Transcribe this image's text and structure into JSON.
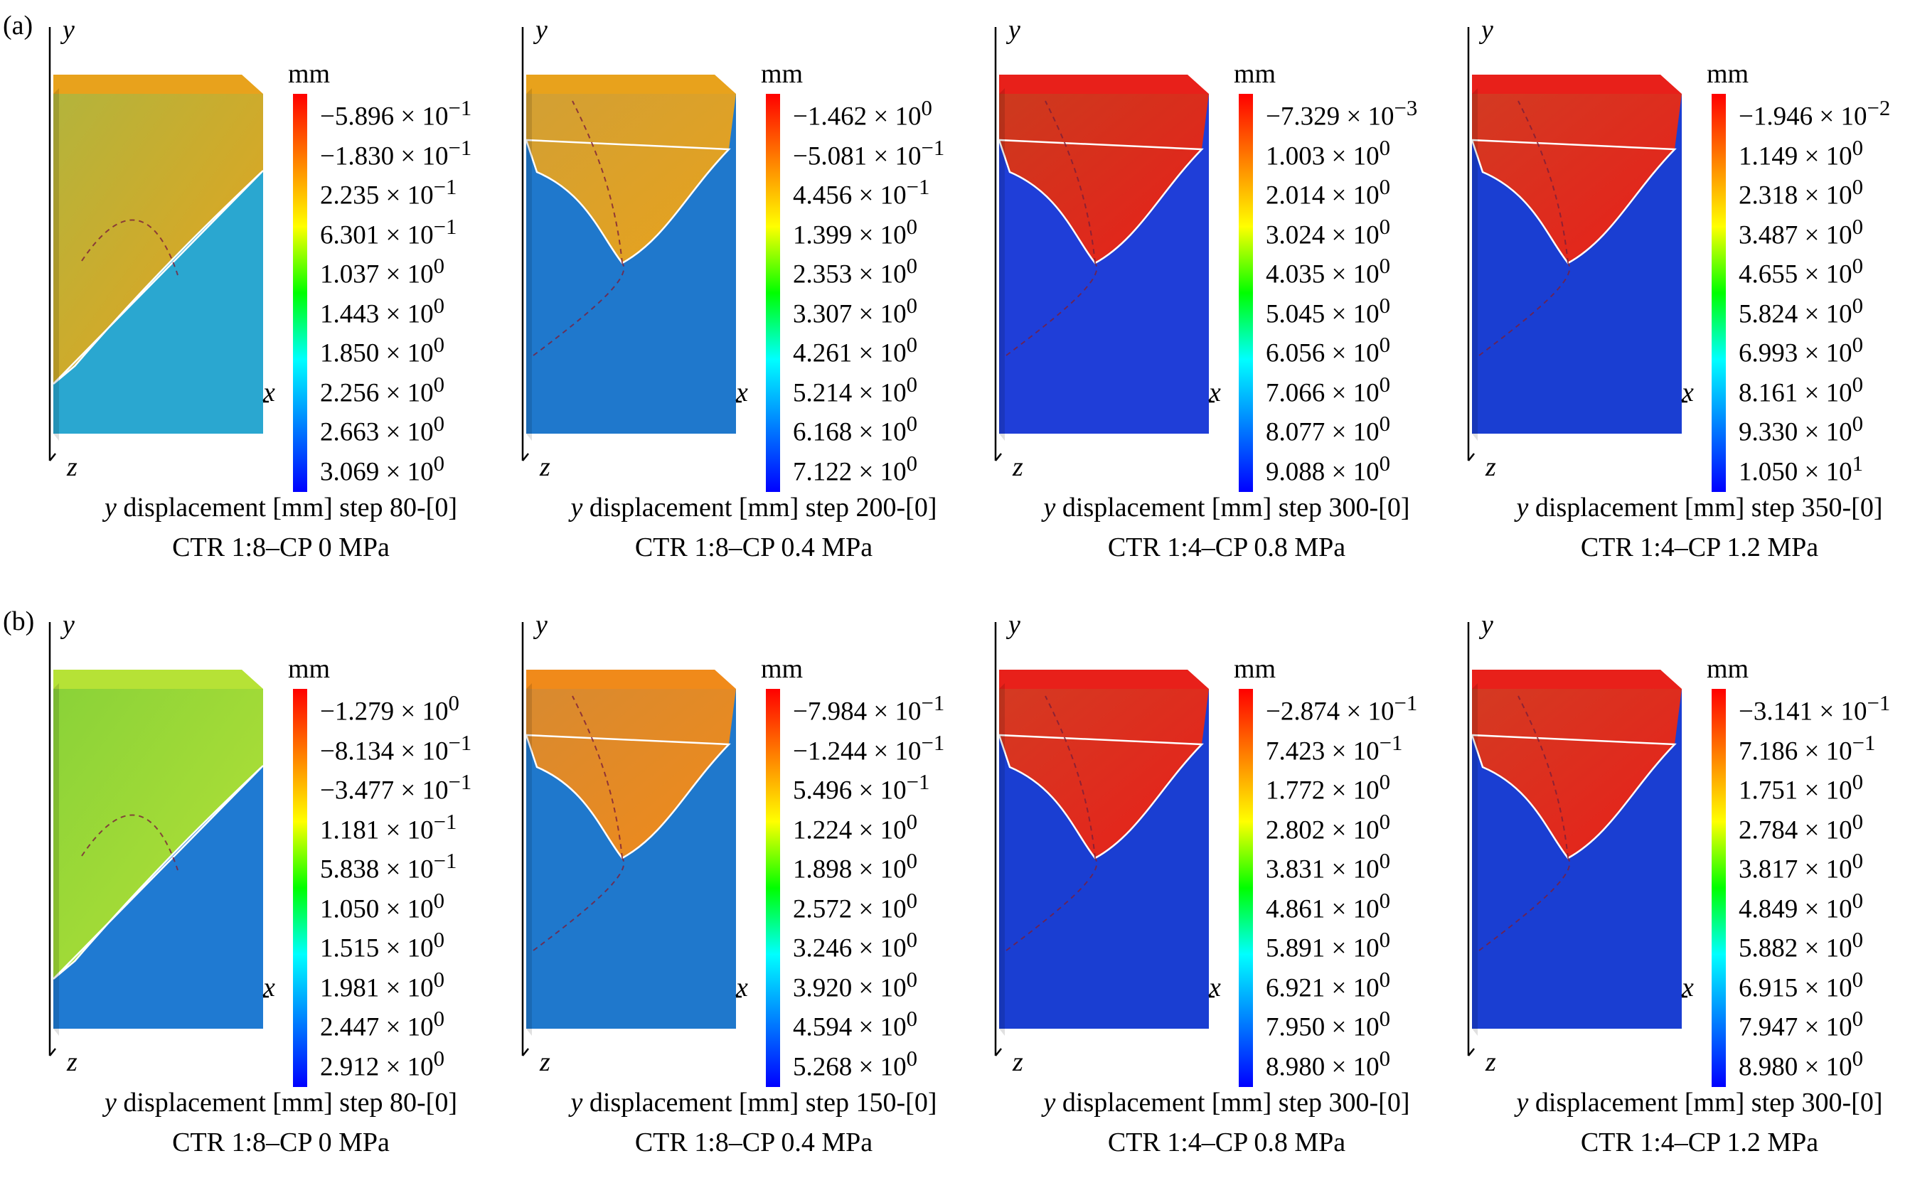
{
  "row_labels": [
    "(a)",
    "(b)"
  ],
  "axis_labels": {
    "y": "y",
    "x": "x",
    "z": "z"
  },
  "units_label": "mm",
  "caption_var": "y",
  "caption_text": " displacement [mm] step ",
  "panels": [
    {
      "row": 0,
      "col": 0,
      "step": "80-[0]",
      "label": "CTR 1:8–CP 0 MPa",
      "ticks": [
        "−5.896 × 10<sup>−1</sup>",
        "−1.830 × 10<sup>−1</sup>",
        "2.235 × 10<sup>−1</sup>",
        "6.301 × 10<sup>−1</sup>",
        "1.037 × 10<sup>0</sup>",
        "1.443 × 10<sup>0</sup>",
        "1.850 × 10<sup>0</sup>",
        "2.256 × 10<sup>0</sup>",
        "2.663 × 10<sup>0</sup>",
        "3.069 × 10<sup>0</sup>"
      ],
      "top_color": "#e8a21c",
      "upper_color": "#b3b43c",
      "lower_color": "#2aa7d0",
      "shape": "diag-left"
    },
    {
      "row": 0,
      "col": 1,
      "step": "200-[0]",
      "label": "CTR 1:8–CP 0.4 MPa",
      "ticks": [
        "−1.462 × 10<sup>0</sup>",
        "−5.081 × 10<sup>−1</sup>",
        "4.456 × 10<sup>−1</sup>",
        "1.399 × 10<sup>0</sup>",
        "2.353 × 10<sup>0</sup>",
        "3.307 × 10<sup>0</sup>",
        "4.261 × 10<sup>0</sup>",
        "5.214 × 10<sup>0</sup>",
        "6.168 × 10<sup>0</sup>",
        "7.122 × 10<sup>0</sup>"
      ],
      "top_color": "#e8a21c",
      "upper_color": "#d2a034",
      "lower_color": "#1f78cc",
      "shape": "vee"
    },
    {
      "row": 0,
      "col": 2,
      "step": "300-[0]",
      "label": "CTR 1:4–CP 0.8 MPa",
      "ticks": [
        "−7.329 × 10<sup>−3</sup>",
        "1.003 × 10<sup>0</sup>",
        "2.014 × 10<sup>0</sup>",
        "3.024 × 10<sup>0</sup>",
        "4.035 × 10<sup>0</sup>",
        "5.045 × 10<sup>0</sup>",
        "6.056 × 10<sup>0</sup>",
        "7.066 × 10<sup>0</sup>",
        "8.077 × 10<sup>0</sup>",
        "9.088 × 10<sup>0</sup>"
      ],
      "top_color": "#e8201a",
      "upper_color": "#cc3a1e",
      "lower_color": "#1f3ed8",
      "shape": "vee"
    },
    {
      "row": 0,
      "col": 3,
      "step": "350-[0]",
      "label": "CTR 1:4–CP 1.2 MPa",
      "ticks": [
        "−1.946 × 10<sup>−2</sup>",
        "1.149 × 10<sup>0</sup>",
        "2.318 × 10<sup>0</sup>",
        "3.487 × 10<sup>0</sup>",
        "4.655 × 10<sup>0</sup>",
        "5.824 × 10<sup>0</sup>",
        "6.993 × 10<sup>0</sup>",
        "8.161 × 10<sup>0</sup>",
        "9.330 × 10<sup>0</sup>",
        "1.050 × 10<sup>1</sup>"
      ],
      "top_color": "#e8201a",
      "upper_color": "#d33a22",
      "lower_color": "#1a3ed2",
      "shape": "vee"
    },
    {
      "row": 1,
      "col": 0,
      "step": "80-[0]",
      "label": "CTR 1:8–CP 0 MPa",
      "ticks": [
        "−1.279 × 10<sup>0</sup>",
        "−8.134 × 10<sup>−1</sup>",
        "−3.477 × 10<sup>−1</sup>",
        "1.181 × 10<sup>−1</sup>",
        "5.838 × 10<sup>−1</sup>",
        "1.050 × 10<sup>0</sup>",
        "1.515 × 10<sup>0</sup>",
        "1.981 × 10<sup>0</sup>",
        "2.447 × 10<sup>0</sup>",
        "2.912 × 10<sup>0</sup>"
      ],
      "top_color": "#b6e236",
      "upper_color": "#8ad238",
      "lower_color": "#1f7ad2",
      "shape": "diag-left"
    },
    {
      "row": 1,
      "col": 1,
      "step": "150-[0]",
      "label": "CTR 1:8–CP 0.4 MPa",
      "ticks": [
        "−7.984 × 10<sup>−1</sup>",
        "−1.244 × 10<sup>−1</sup>",
        "5.496 × 10<sup>−1</sup>",
        "1.224 × 10<sup>0</sup>",
        "1.898 × 10<sup>0</sup>",
        "2.572 × 10<sup>0</sup>",
        "3.246 × 10<sup>0</sup>",
        "3.920 × 10<sup>0</sup>",
        "4.594 × 10<sup>0</sup>",
        "5.268 × 10<sup>0</sup>"
      ],
      "top_color": "#f08a1a",
      "upper_color": "#d88a30",
      "lower_color": "#1f78cc",
      "shape": "vee"
    },
    {
      "row": 1,
      "col": 2,
      "step": "300-[0]",
      "label": "CTR 1:4–CP 0.8 MPa",
      "ticks": [
        "−2.874 × 10<sup>−1</sup>",
        "7.423 × 10<sup>−1</sup>",
        "1.772 × 10<sup>0</sup>",
        "2.802 × 10<sup>0</sup>",
        "3.831 × 10<sup>0</sup>",
        "4.861 × 10<sup>0</sup>",
        "5.891 × 10<sup>0</sup>",
        "6.921 × 10<sup>0</sup>",
        "7.950 × 10<sup>0</sup>",
        "8.980 × 10<sup>0</sup>"
      ],
      "top_color": "#e8201a",
      "upper_color": "#d43a22",
      "lower_color": "#1a3ed2",
      "shape": "vee"
    },
    {
      "row": 1,
      "col": 3,
      "step": "300-[0]",
      "label": "CTR 1:4–CP 1.2 MPa",
      "ticks": [
        "−3.141 × 10<sup>−1</sup>",
        "7.186 × 10<sup>−1</sup>",
        "1.751 × 10<sup>0</sup>",
        "2.784 × 10<sup>0</sup>",
        "3.817 × 10<sup>0</sup>",
        "4.849 × 10<sup>0</sup>",
        "5.882 × 10<sup>0</sup>",
        "6.915 × 10<sup>0</sup>",
        "7.947 × 10<sup>0</sup>",
        "8.980 × 10<sup>0</sup>"
      ],
      "top_color": "#e8201a",
      "upper_color": "#d43a22",
      "lower_color": "#1a3ed2",
      "shape": "vee"
    }
  ],
  "colorbar_stops": [
    "#ff0000",
    "#ff8000",
    "#ffff00",
    "#00ff00",
    "#00ffff",
    "#0080ff",
    "#0000ff"
  ]
}
